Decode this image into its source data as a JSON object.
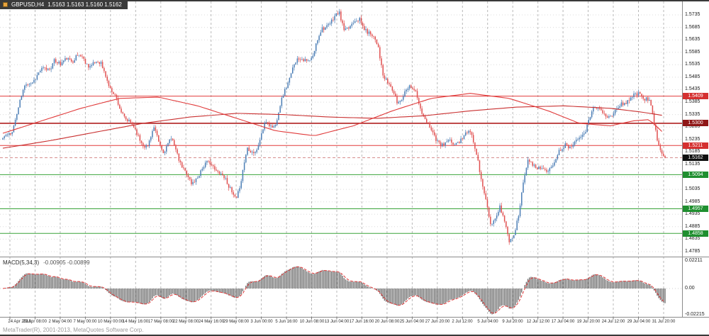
{
  "window": {
    "symbol_label": "GBPUSD,H4",
    "ohlc_values": "1.5163 1.5163 1.5160 1.5162",
    "copyright": "MetaTrader(R), 2001-2013, MetaQuotes Software Corp."
  },
  "colors": {
    "background": "#ffffff",
    "candle_up": "#4a7db5",
    "candle_down": "#e04f4f",
    "grid_v": "#b8b8b8",
    "grid_h": "#dcdcdc",
    "ma_fast": "#e03a3a",
    "ma_slow": "#c93030",
    "macd_hist": "#6f6f6f",
    "macd_signal": "#e03a3a",
    "separator": "#8a8a8a",
    "window_edge": "#3a3a3a",
    "current_line": "#c96a6a",
    "current_tag_bg": "#101010"
  },
  "chart_data": {
    "type": "candlestick",
    "symbol": "GBPUSD",
    "timeframe": "H4",
    "title": "GBPUSD,H4",
    "bars": 426,
    "seed": 11,
    "price_axis": {
      "max_tick": 1.5735,
      "min_tick": 1.4785,
      "step": 0.005,
      "ticks": [
        "1.5735",
        "1.5685",
        "1.5635",
        "1.5585",
        "1.5535",
        "1.5485",
        "1.5435",
        "1.5385",
        "1.5335",
        "1.5285",
        "1.5235",
        "1.5185",
        "1.5135",
        "1.5085",
        "1.5035",
        "1.4985",
        "1.4935",
        "1.4885",
        "1.4835",
        "1.4785"
      ]
    },
    "x_labels": [
      "24 Apr 2013",
      "29 Apr 08:00",
      "2 May 04:00",
      "7 May 00:00",
      "10 May 00:00",
      "14 May 16:00",
      "17 May 08:00",
      "22 May 08:00",
      "24 May 16:00",
      "29 May 08:00",
      "3 Jun 00:00",
      "5 Jun 16:00",
      "10 Jun 08:00",
      "13 Jun 04:00",
      "17 Jun 16:00",
      "20 Jun 08:00",
      "25 Jun 04:00",
      "27 Jun 20:00",
      "2 Jul 12:00",
      "5 Jul 04:00",
      "9 Jul 20:00",
      "12 Jul 12:00",
      "17 Jul 04:00",
      "19 Jul 20:00",
      "24 Jul 12:00",
      "29 Jul 04:00",
      "31 Jul 20:00"
    ],
    "waypoints": [
      [
        0,
        1.5235
      ],
      [
        5,
        1.527
      ],
      [
        9,
        1.5345
      ],
      [
        15,
        1.545
      ],
      [
        21,
        1.548
      ],
      [
        27,
        1.552
      ],
      [
        33,
        1.556
      ],
      [
        37,
        1.5525
      ],
      [
        41,
        1.5565
      ],
      [
        45,
        1.5545
      ],
      [
        51,
        1.5565
      ],
      [
        57,
        1.554
      ],
      [
        63,
        1.5545
      ],
      [
        66,
        1.55
      ],
      [
        69,
        1.543
      ],
      [
        75,
        1.5355
      ],
      [
        81,
        1.531
      ],
      [
        87,
        1.5255
      ],
      [
        93,
        1.5205
      ],
      [
        97,
        1.5265
      ],
      [
        103,
        1.5185
      ],
      [
        109,
        1.5235
      ],
      [
        115,
        1.514
      ],
      [
        121,
        1.5045
      ],
      [
        127,
        1.511
      ],
      [
        133,
        1.5135
      ],
      [
        139,
        1.512
      ],
      [
        145,
        1.5045
      ],
      [
        150,
        1.5
      ],
      [
        153,
        1.506
      ],
      [
        157,
        1.519
      ],
      [
        163,
        1.52
      ],
      [
        169,
        1.531
      ],
      [
        175,
        1.5295
      ],
      [
        181,
        1.542
      ],
      [
        187,
        1.5545
      ],
      [
        193,
        1.556
      ],
      [
        199,
        1.5575
      ],
      [
        205,
        1.5675
      ],
      [
        211,
        1.5705
      ],
      [
        216,
        1.5735
      ],
      [
        219,
        1.569
      ],
      [
        223,
        1.57
      ],
      [
        229,
        1.5715
      ],
      [
        235,
        1.5655
      ],
      [
        241,
        1.5605
      ],
      [
        244,
        1.5505
      ],
      [
        247,
        1.547
      ],
      [
        253,
        1.539
      ],
      [
        259,
        1.5435
      ],
      [
        265,
        1.542
      ],
      [
        271,
        1.531
      ],
      [
        277,
        1.526
      ],
      [
        283,
        1.521
      ],
      [
        289,
        1.5215
      ],
      [
        295,
        1.5235
      ],
      [
        301,
        1.527
      ],
      [
        304,
        1.52
      ],
      [
        307,
        1.5075
      ],
      [
        313,
        1.489
      ],
      [
        319,
        1.495
      ],
      [
        325,
        1.4835
      ],
      [
        328,
        1.487
      ],
      [
        331,
        1.493
      ],
      [
        334,
        1.506
      ],
      [
        337,
        1.517
      ],
      [
        343,
        1.5105
      ],
      [
        349,
        1.5105
      ],
      [
        355,
        1.516
      ],
      [
        361,
        1.523
      ],
      [
        367,
        1.521
      ],
      [
        373,
        1.526
      ],
      [
        379,
        1.536
      ],
      [
        385,
        1.536
      ],
      [
        391,
        1.532
      ],
      [
        397,
        1.538
      ],
      [
        403,
        1.5385
      ],
      [
        409,
        1.5435
      ],
      [
        415,
        1.539
      ],
      [
        420,
        1.524
      ],
      [
        423,
        1.5185
      ],
      [
        425,
        1.5162
      ]
    ],
    "ma_fast": [
      [
        0,
        1.526
      ],
      [
        25,
        1.531
      ],
      [
        50,
        1.536
      ],
      [
        75,
        1.54
      ],
      [
        100,
        1.5405
      ],
      [
        125,
        1.537
      ],
      [
        150,
        1.532
      ],
      [
        175,
        1.527
      ],
      [
        200,
        1.525
      ],
      [
        225,
        1.529
      ],
      [
        250,
        1.535
      ],
      [
        275,
        1.54
      ],
      [
        300,
        1.542
      ],
      [
        325,
        1.54
      ],
      [
        350,
        1.535
      ],
      [
        370,
        1.53
      ],
      [
        390,
        1.529
      ],
      [
        405,
        1.531
      ],
      [
        415,
        1.5315
      ],
      [
        425,
        1.5255
      ]
    ],
    "ma_slow": [
      [
        0,
        1.52
      ],
      [
        30,
        1.523
      ],
      [
        60,
        1.5265
      ],
      [
        90,
        1.53
      ],
      [
        120,
        1.5325
      ],
      [
        150,
        1.534
      ],
      [
        180,
        1.5335
      ],
      [
        210,
        1.5325
      ],
      [
        240,
        1.532
      ],
      [
        270,
        1.533
      ],
      [
        300,
        1.535
      ],
      [
        330,
        1.5365
      ],
      [
        360,
        1.537
      ],
      [
        390,
        1.536
      ],
      [
        410,
        1.5345
      ],
      [
        425,
        1.533
      ]
    ],
    "levels": [
      {
        "price": 1.5409,
        "label": "1.5409",
        "line": "#e23b3b",
        "tag_bg": "#d53030",
        "width": 1
      },
      {
        "price": 1.53,
        "label": "1.5300",
        "line": "#b02020",
        "tag_bg": "#8f1616",
        "width": 1.6
      },
      {
        "price": 1.5211,
        "label": "1.5211",
        "line": "#e23b3b",
        "tag_bg": "#d53030",
        "width": 1
      },
      {
        "price": 1.5094,
        "label": "1.5094",
        "line": "#3aa33a",
        "tag_bg": "#1f8f2f",
        "width": 1
      },
      {
        "price": 1.4957,
        "label": "1.4957",
        "line": "#3aa33a",
        "tag_bg": "#1f8f2f",
        "width": 1
      },
      {
        "price": 1.4858,
        "label": "1.4858",
        "line": "#3aa33a",
        "tag_bg": "#1f8f2f",
        "width": 1
      }
    ],
    "current": {
      "price": 1.5162,
      "label": "1.5162"
    },
    "macd": {
      "label": "MACD(5,34,3)",
      "values": "-0.00905 -0.00899",
      "fast": 5,
      "slow": 34,
      "signal": 3,
      "axis_ticks": [
        {
          "label": "0.02211",
          "value": 0.02211
        },
        {
          "label": "0.00",
          "value": 0
        },
        {
          "label": "-0.02215",
          "value": -0.02215
        }
      ]
    }
  }
}
